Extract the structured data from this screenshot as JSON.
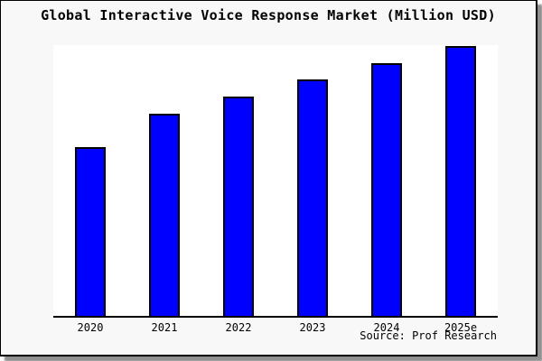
{
  "chart_data": {
    "type": "bar",
    "title": "Global Interactive Voice Response Market (Million USD)",
    "categories": [
      "2020",
      "2021",
      "2022",
      "2023",
      "2024",
      "2025e"
    ],
    "values": [
      62.5,
      74.9,
      81.3,
      87.6,
      93.6,
      100
    ],
    "values_note": "No y-axis or data labels shown in image; values are relative bar heights with tallest bar (2025e) = 100.",
    "xlabel": "",
    "ylabel": "",
    "ylim": [
      0,
      100.3
    ],
    "grid": false,
    "legend": false,
    "bar_color": "#0000ff",
    "bar_border_color": "#000000",
    "plot_bg": "#ffffff",
    "fig_bg": "#f8f8f8",
    "frame_border_color": "#000000"
  },
  "source_credit": "Source: Prof Research"
}
